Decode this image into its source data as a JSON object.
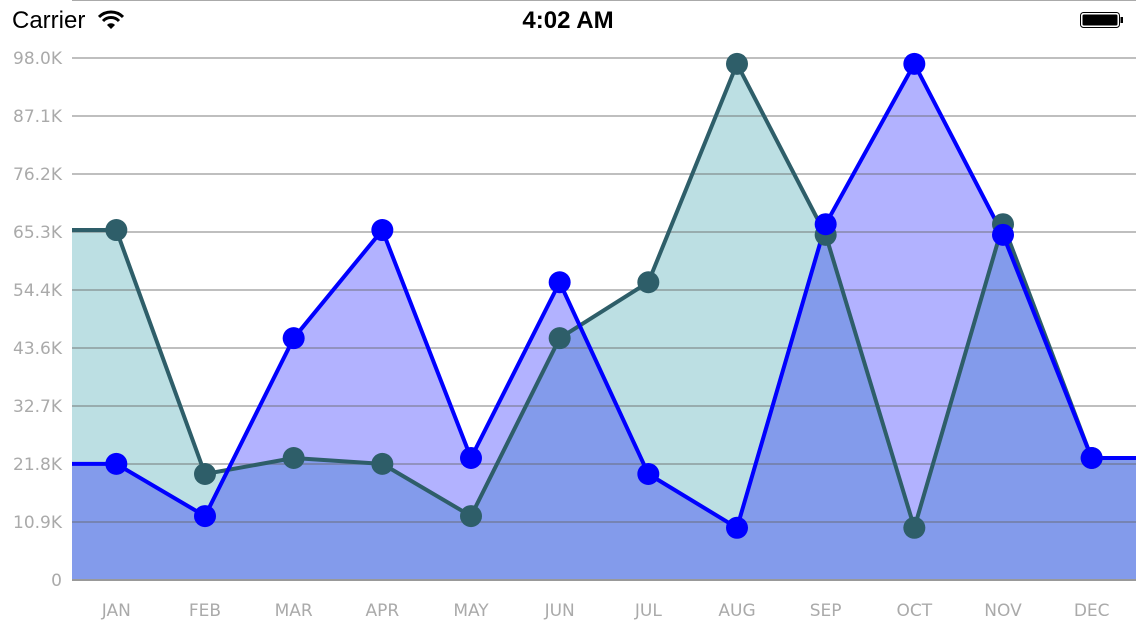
{
  "status_bar": {
    "carrier": "Carrier",
    "time": "4:02 AM",
    "icons": [
      "wifi-icon",
      "battery-icon"
    ]
  },
  "chart_data": {
    "type": "area",
    "categories": [
      "JAN",
      "FEB",
      "MAR",
      "APR",
      "MAY",
      "JUN",
      "JUL",
      "AUG",
      "SEP",
      "OCT",
      "NOV",
      "DEC"
    ],
    "y_ticks": [
      "0",
      "10.9K",
      "21.8K",
      "32.7K",
      "43.6K",
      "54.4K",
      "65.3K",
      "76.2K",
      "87.1K",
      "98.0K"
    ],
    "ylim": [
      0,
      98000
    ],
    "grid": true,
    "series": [
      {
        "color": "#2e5e69",
        "fill": "#bcdfe3",
        "values": [
          65700,
          19900,
          22900,
          21800,
          12000,
          45400,
          55900,
          96900,
          64800,
          9800,
          66800,
          22900
        ]
      },
      {
        "color": "#0000ff",
        "fill": "rgba(0,0,255,0.3)",
        "values": [
          21800,
          12000,
          45400,
          65700,
          22900,
          55900,
          19900,
          9800,
          66800,
          96900,
          64800,
          22900
        ]
      }
    ]
  }
}
